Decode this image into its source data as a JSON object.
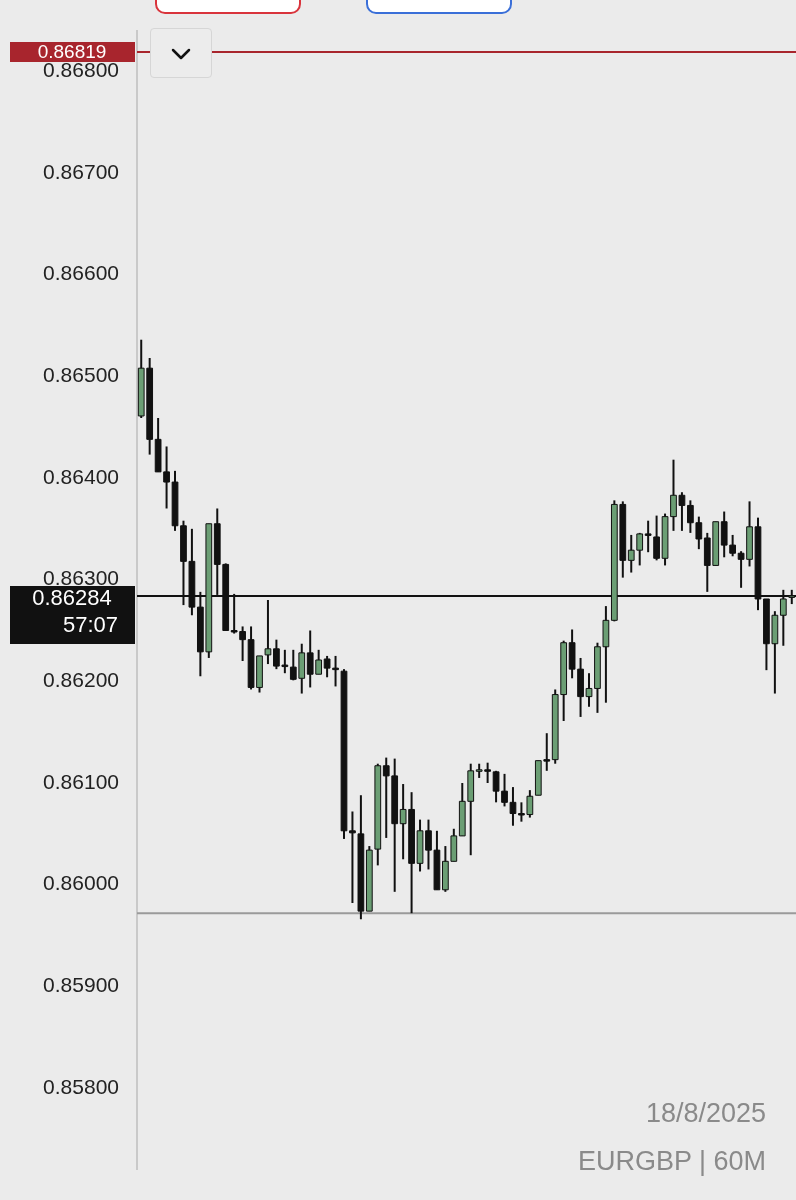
{
  "chart_data": {
    "type": "candlestick",
    "categories": [
      null,
      null,
      null,
      null,
      null,
      null,
      null,
      null,
      null,
      null,
      null,
      null,
      null,
      null,
      null,
      null,
      null,
      null,
      null,
      null,
      null,
      null,
      null,
      null,
      null,
      null,
      null,
      null,
      null,
      null,
      null,
      null,
      null,
      null,
      null,
      null,
      null,
      null,
      null,
      null,
      null,
      null,
      null,
      null,
      null,
      null,
      null,
      null,
      null,
      null,
      null,
      null,
      null,
      null,
      null,
      null,
      null,
      null,
      null,
      null,
      null,
      null,
      null,
      null,
      null,
      null,
      null,
      null,
      null,
      null,
      null,
      null,
      null,
      null,
      null,
      null,
      null,
      null
    ],
    "ohlc": [
      [
        0.86461,
        0.86536,
        0.86459,
        0.86508
      ],
      [
        0.86508,
        0.86518,
        0.86423,
        0.86438
      ],
      [
        0.86438,
        0.86459,
        0.86406,
        0.86406
      ],
      [
        0.86406,
        0.86431,
        0.8637,
        0.86396
      ],
      [
        0.86396,
        0.86407,
        0.86348,
        0.86353
      ],
      [
        0.86353,
        0.86358,
        0.86275,
        0.86318
      ],
      [
        0.86318,
        0.8635,
        0.86265,
        0.86273
      ],
      [
        0.86273,
        0.86288,
        0.86205,
        0.86229
      ],
      [
        0.86229,
        0.86355,
        0.86223,
        0.86355
      ],
      [
        0.86355,
        0.8637,
        0.86285,
        0.86315
      ],
      [
        0.86315,
        0.86316,
        0.8625,
        0.8625
      ],
      [
        0.8625,
        0.86286,
        0.86247,
        0.86249
      ],
      [
        0.86249,
        0.86254,
        0.8622,
        0.86241
      ],
      [
        0.86241,
        0.86254,
        0.86192,
        0.86194
      ],
      [
        0.86194,
        0.86225,
        0.86189,
        0.86225
      ],
      [
        0.86226,
        0.8628,
        0.86217,
        0.86232
      ],
      [
        0.86232,
        0.86241,
        0.86212,
        0.86215
      ],
      [
        0.86216,
        0.86231,
        0.86208,
        0.86215
      ],
      [
        0.86214,
        0.86231,
        0.86201,
        0.86202
      ],
      [
        0.86203,
        0.86237,
        0.86188,
        0.86228
      ],
      [
        0.86228,
        0.8625,
        0.86194,
        0.86207
      ],
      [
        0.86207,
        0.86231,
        0.86207,
        0.86221
      ],
      [
        0.86222,
        0.86225,
        0.86204,
        0.86213
      ],
      [
        0.86213,
        0.86225,
        0.86195,
        0.86212
      ],
      [
        0.8621,
        0.86212,
        0.86045,
        0.86053
      ],
      [
        0.86053,
        0.86072,
        0.85982,
        0.86051
      ],
      [
        0.8605,
        0.86088,
        0.85966,
        0.85974
      ],
      [
        0.85974,
        0.86038,
        0.85974,
        0.86034
      ],
      [
        0.86035,
        0.86119,
        0.86019,
        0.86117
      ],
      [
        0.86117,
        0.86125,
        0.86046,
        0.86107
      ],
      [
        0.86107,
        0.86124,
        0.85993,
        0.8606
      ],
      [
        0.8606,
        0.86099,
        0.86025,
        0.86074
      ],
      [
        0.86074,
        0.86091,
        0.85972,
        0.86021
      ],
      [
        0.86021,
        0.86064,
        0.86013,
        0.86053
      ],
      [
        0.86053,
        0.86064,
        0.86015,
        0.86034
      ],
      [
        0.86034,
        0.86053,
        0.85995,
        0.85995
      ],
      [
        0.85995,
        0.86038,
        0.85993,
        0.86023
      ],
      [
        0.86023,
        0.86055,
        0.86023,
        0.86048
      ],
      [
        0.86048,
        0.861,
        0.86048,
        0.86082
      ],
      [
        0.86082,
        0.86119,
        0.86029,
        0.86112
      ],
      [
        0.86112,
        0.86119,
        0.86105,
        0.86113
      ],
      [
        0.86113,
        0.8612,
        0.861,
        0.86113
      ],
      [
        0.86111,
        0.86112,
        0.86081,
        0.86092
      ],
      [
        0.86092,
        0.86109,
        0.86077,
        0.86081
      ],
      [
        0.86081,
        0.86096,
        0.86058,
        0.8607
      ],
      [
        0.8607,
        0.86081,
        0.86062,
        0.8607
      ],
      [
        0.86069,
        0.86093,
        0.86066,
        0.86087
      ],
      [
        0.86088,
        0.86122,
        0.86088,
        0.86122
      ],
      [
        0.86122,
        0.86149,
        0.86112,
        0.86123
      ],
      [
        0.86123,
        0.86192,
        0.86119,
        0.86187
      ],
      [
        0.86187,
        0.8624,
        0.86161,
        0.86238
      ],
      [
        0.86238,
        0.86251,
        0.86203,
        0.86212
      ],
      [
        0.86212,
        0.86223,
        0.86165,
        0.86185
      ],
      [
        0.86185,
        0.86208,
        0.86175,
        0.86193
      ],
      [
        0.86193,
        0.86238,
        0.86169,
        0.86234
      ],
      [
        0.86234,
        0.86274,
        0.86179,
        0.8626
      ],
      [
        0.8626,
        0.86378,
        0.86259,
        0.86374
      ],
      [
        0.86374,
        0.86377,
        0.86302,
        0.86319
      ],
      [
        0.86319,
        0.86344,
        0.86307,
        0.86329
      ],
      [
        0.86329,
        0.86346,
        0.86314,
        0.86345
      ],
      [
        0.86345,
        0.86358,
        0.86327,
        0.86344
      ],
      [
        0.86342,
        0.86363,
        0.86319,
        0.86321
      ],
      [
        0.86321,
        0.86365,
        0.86314,
        0.86362
      ],
      [
        0.86362,
        0.86418,
        0.86348,
        0.86383
      ],
      [
        0.86383,
        0.86386,
        0.86348,
        0.86373
      ],
      [
        0.86373,
        0.86378,
        0.86346,
        0.86356
      ],
      [
        0.86356,
        0.86362,
        0.8633,
        0.8634
      ],
      [
        0.86341,
        0.86346,
        0.86288,
        0.86314
      ],
      [
        0.86314,
        0.86357,
        0.86314,
        0.86357
      ],
      [
        0.86357,
        0.86367,
        0.86322,
        0.86334
      ],
      [
        0.86334,
        0.86344,
        0.86323,
        0.86326
      ],
      [
        0.86326,
        0.86328,
        0.86292,
        0.8632
      ],
      [
        0.8632,
        0.86377,
        0.86313,
        0.86352
      ],
      [
        0.86352,
        0.86361,
        0.8627,
        0.86281
      ],
      [
        0.86281,
        0.86281,
        0.86211,
        0.86237
      ],
      [
        0.86237,
        0.86269,
        0.86188,
        0.86265
      ],
      [
        0.86265,
        0.8629,
        0.86235,
        0.86281
      ],
      [
        0.86283,
        0.8629,
        0.86276,
        0.86284
      ]
    ],
    "colors": [
      "#6b9e74",
      "#111111",
      "#111111",
      "#111111",
      "#111111",
      "#111111",
      "#111111",
      "#111111",
      "#6b9e74",
      "#111111",
      "#111111",
      "#111111",
      "#111111",
      "#111111",
      "#6b9e74",
      "#6b9e74",
      "#111111",
      "#111111",
      "#111111",
      "#6b9e74",
      "#111111",
      "#6b9e74",
      "#111111",
      "#111111",
      "#111111",
      "#111111",
      "#111111",
      "#6b9e74",
      "#6b9e74",
      "#111111",
      "#111111",
      "#6b9e74",
      "#111111",
      "#6b9e74",
      "#111111",
      "#111111",
      "#6b9e74",
      "#6b9e74",
      "#6b9e74",
      "#6b9e74",
      "#6b9e74",
      "#111111",
      "#111111",
      "#111111",
      "#111111",
      "#111111",
      "#6b9e74",
      "#6b9e74",
      "#111111",
      "#6b9e74",
      "#6b9e74",
      "#111111",
      "#111111",
      "#6b9e74",
      "#6b9e74",
      "#6b9e74",
      "#6b9e74",
      "#111111",
      "#6b9e74",
      "#6b9e74",
      "#111111",
      "#111111",
      "#6b9e74",
      "#6b9e74",
      "#111111",
      "#111111",
      "#111111",
      "#111111",
      "#6b9e74",
      "#111111",
      "#111111",
      "#111111",
      "#6b9e74",
      "#111111",
      "#111111",
      "#6b9e74",
      "#6b9e74",
      "#6b9e74"
    ],
    "ylim": [
      0.8572,
      0.8684
    ],
    "yticks": [
      {
        "value": 0.858,
        "label": "0.85800"
      },
      {
        "value": 0.859,
        "label": "0.85900"
      },
      {
        "value": 0.86,
        "label": "0.86000"
      },
      {
        "value": 0.861,
        "label": "0.86100"
      },
      {
        "value": 0.862,
        "label": "0.86200"
      },
      {
        "value": 0.863,
        "label": "0.86300"
      },
      {
        "value": 0.864,
        "label": "0.86400"
      },
      {
        "value": 0.865,
        "label": "0.86500"
      },
      {
        "value": 0.866,
        "label": "0.86600"
      },
      {
        "value": 0.867,
        "label": "0.86700"
      },
      {
        "value": 0.868,
        "label": "0.86800"
      }
    ],
    "tick_labels": "y",
    "ref_lines": [
      {
        "axis": "y",
        "value": 0.86819,
        "label": "0.86819",
        "color": "#a8252d"
      },
      {
        "axis": "y",
        "value": 0.85972,
        "color": "#9a9a9a"
      },
      {
        "axis": "y",
        "value": 0.86284,
        "label": "0.86284",
        "color": "#111111"
      }
    ],
    "annotations": [
      "57:07",
      "18/8/2025",
      "EURGBP | 60M"
    ]
  }
}
